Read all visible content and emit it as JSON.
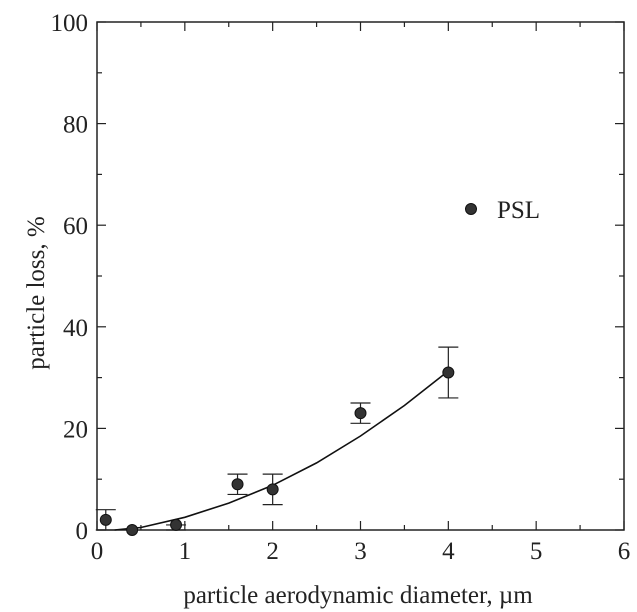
{
  "chart_data": {
    "type": "scatter",
    "xlabel": "particle aerodynamic diameter, µm",
    "ylabel": "particle loss, %",
    "xlim": [
      0,
      6
    ],
    "ylim": [
      0,
      100
    ],
    "xticks": [
      "0",
      "1",
      "2",
      "3",
      "4",
      "5",
      "6"
    ],
    "yticks": [
      "0",
      "20",
      "40",
      "60",
      "80",
      "100"
    ],
    "grid": false,
    "legend_position": "right-middle",
    "series": [
      {
        "name": "PSL",
        "points": [
          {
            "x": 0.1,
            "y": 2,
            "ylow": 0,
            "yhigh": 4
          },
          {
            "x": 0.4,
            "y": 0,
            "ylow": 0,
            "yhigh": 0
          },
          {
            "x": 0.9,
            "y": 1,
            "ylow": 0,
            "yhigh": 1
          },
          {
            "x": 1.6,
            "y": 9,
            "ylow": 7,
            "yhigh": 11
          },
          {
            "x": 2.0,
            "y": 8,
            "ylow": 5,
            "yhigh": 11
          },
          {
            "x": 3.0,
            "y": 23,
            "ylow": 21,
            "yhigh": 25
          },
          {
            "x": 4.0,
            "y": 31,
            "ylow": 26,
            "yhigh": 36
          }
        ]
      }
    ],
    "fit_curve": [
      {
        "x": 0.2,
        "y": 0
      },
      {
        "x": 0.5,
        "y": 0.5
      },
      {
        "x": 1.0,
        "y": 2.5
      },
      {
        "x": 1.5,
        "y": 5.3
      },
      {
        "x": 2.0,
        "y": 8.8
      },
      {
        "x": 2.5,
        "y": 13.2
      },
      {
        "x": 3.0,
        "y": 18.5
      },
      {
        "x": 3.5,
        "y": 24.5
      },
      {
        "x": 4.0,
        "y": 31.3
      }
    ]
  }
}
